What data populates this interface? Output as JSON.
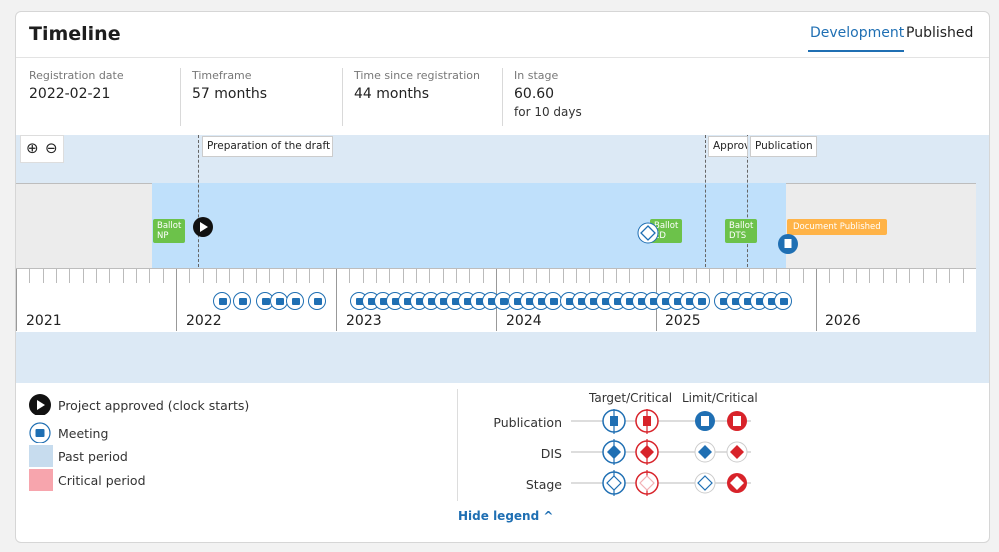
{
  "header": {
    "title": "Timeline",
    "tabs": [
      {
        "label": "Development",
        "active": true
      },
      {
        "label": "Published",
        "active": false
      }
    ]
  },
  "stats": [
    {
      "label": "Registration date",
      "value": "2022-02-21"
    },
    {
      "label": "Timeframe",
      "value": "57 months"
    },
    {
      "label": "Time since registration",
      "value": "44 months"
    },
    {
      "label": "In stage",
      "value": "60.60",
      "sub": "for 10 days"
    }
  ],
  "timeline": {
    "phases": [
      {
        "label": "Preparation of the draft"
      },
      {
        "label": "Approv"
      },
      {
        "label": "Publication"
      }
    ],
    "chips": [
      {
        "line1": "Ballot",
        "line2": "NP"
      },
      {
        "line1": "Ballot",
        "line2": "ED"
      },
      {
        "line1": "Ballot",
        "line2": "DTS"
      },
      {
        "line1": "Document Published",
        "line2": ""
      }
    ],
    "years": [
      "2021",
      "2022",
      "2023",
      "2024",
      "2025",
      "2026"
    ],
    "colors": {
      "past": "#bfe0fb",
      "accent": "#1f6fb3",
      "critical": "#d8232a",
      "ballot": "#6cc24a",
      "published": "#ffb347"
    }
  },
  "legend": {
    "items": [
      {
        "icon": "play-icon",
        "label": "Project approved (clock starts)"
      },
      {
        "icon": "meeting-icon",
        "label": "Meeting"
      },
      {
        "icon": "past-swatch",
        "label": "Past period"
      },
      {
        "icon": "critical-swatch",
        "label": "Critical period"
      }
    ],
    "columns": [
      "Target/Critical",
      "Limit/Critical"
    ],
    "rows": [
      "Publication",
      "DIS",
      "Stage"
    ],
    "hide_label": "Hide legend ^"
  }
}
